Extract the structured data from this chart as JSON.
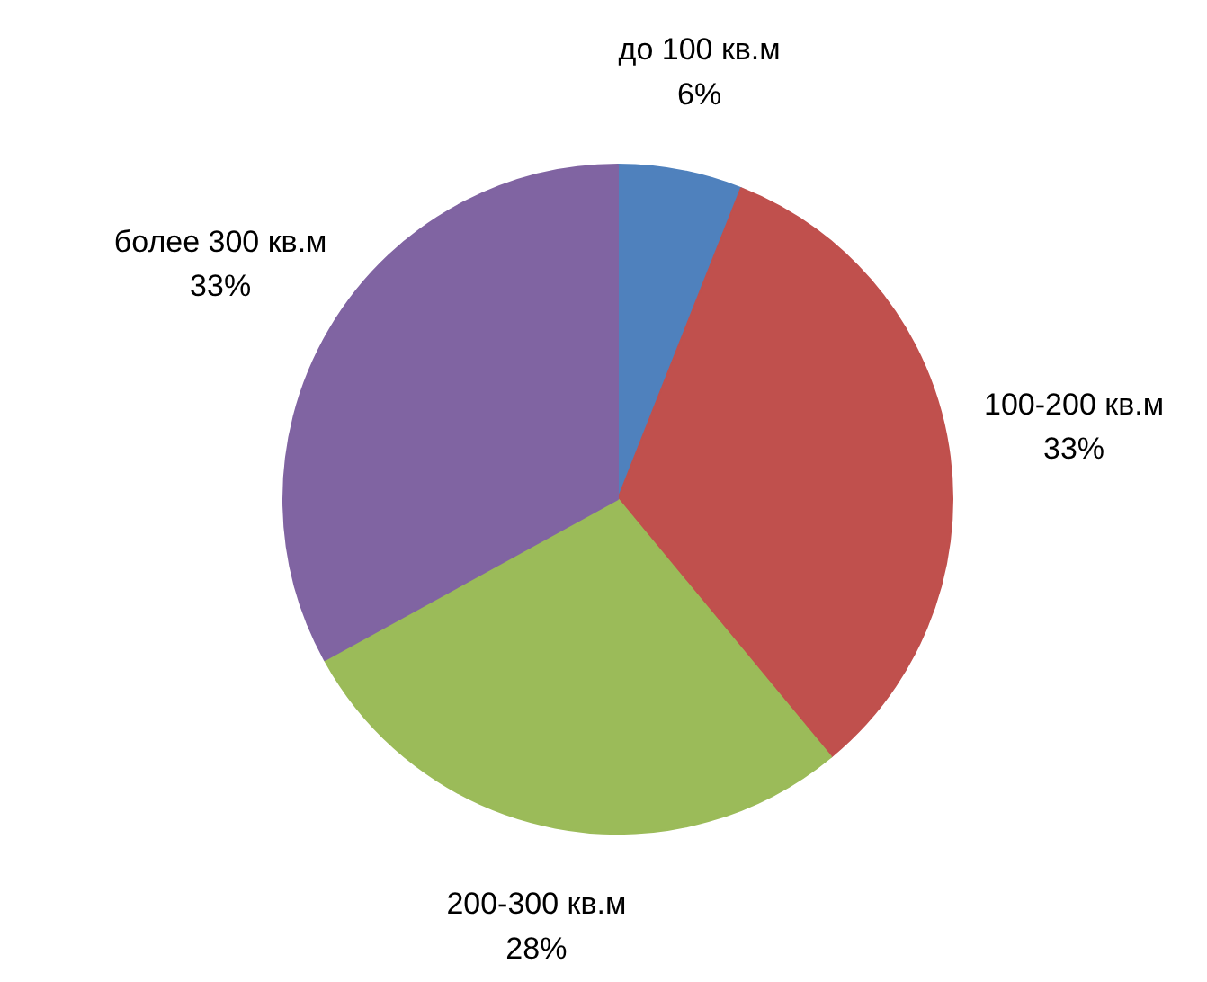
{
  "chart_data": {
    "type": "pie",
    "categories": [
      "до 100 кв.м",
      "100-200 кв.м",
      "200-300 кв.м",
      "более 300 кв.м"
    ],
    "values": [
      6,
      33,
      28,
      33
    ],
    "colors": [
      "#4f81bd",
      "#c0504d",
      "#9bbb59",
      "#8064a2"
    ],
    "value_labels": [
      "6%",
      "33%",
      "28%",
      "33%"
    ]
  }
}
